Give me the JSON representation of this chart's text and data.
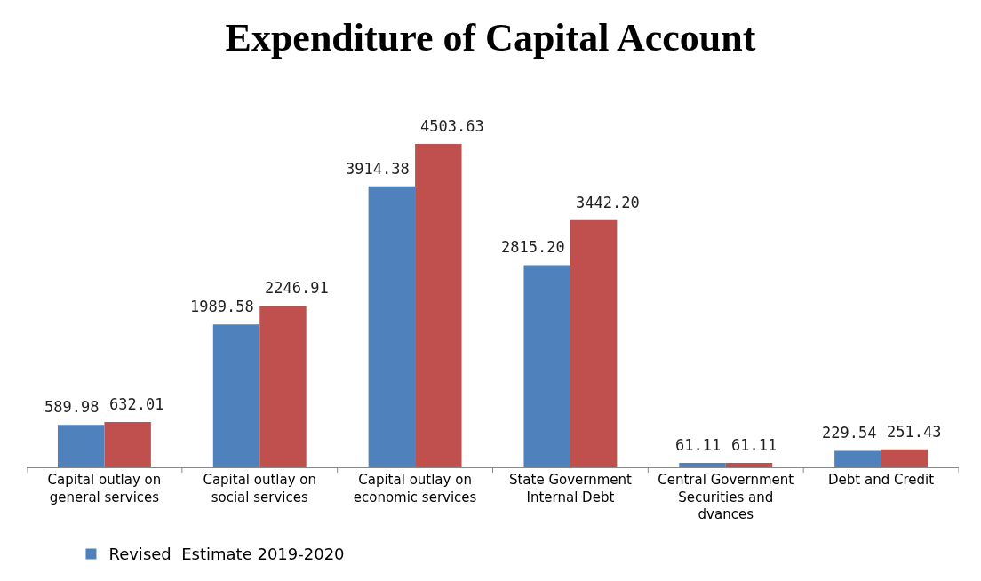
{
  "chart_data": {
    "type": "bar",
    "title": "Expenditure of Capital Account",
    "categories": [
      "Capital outlay on general services",
      "Capital outlay on social services",
      "Capital outlay on economic services",
      "State Government Internal Debt",
      "Central Government Securities and dvances",
      "Debt and Credit"
    ],
    "series": [
      {
        "name": "Revised  Estimate 2019-2020",
        "color": "#4f81bd",
        "values": [
          589.98,
          1989.58,
          3914.38,
          2815.2,
          61.11,
          229.54
        ],
        "value_labels": [
          "589.98",
          "1989.58",
          "3914.38",
          "2815.20",
          "61.11",
          "229.54"
        ]
      },
      {
        "color": "#c0504d",
        "values": [
          632.01,
          2246.91,
          4503.63,
          3442.2,
          61.11,
          251.43
        ],
        "value_labels": [
          "632.01",
          "2246.91",
          "4503.63",
          "3442.20",
          "61.11",
          "251.43"
        ]
      }
    ],
    "legend": "bottom left"
  }
}
